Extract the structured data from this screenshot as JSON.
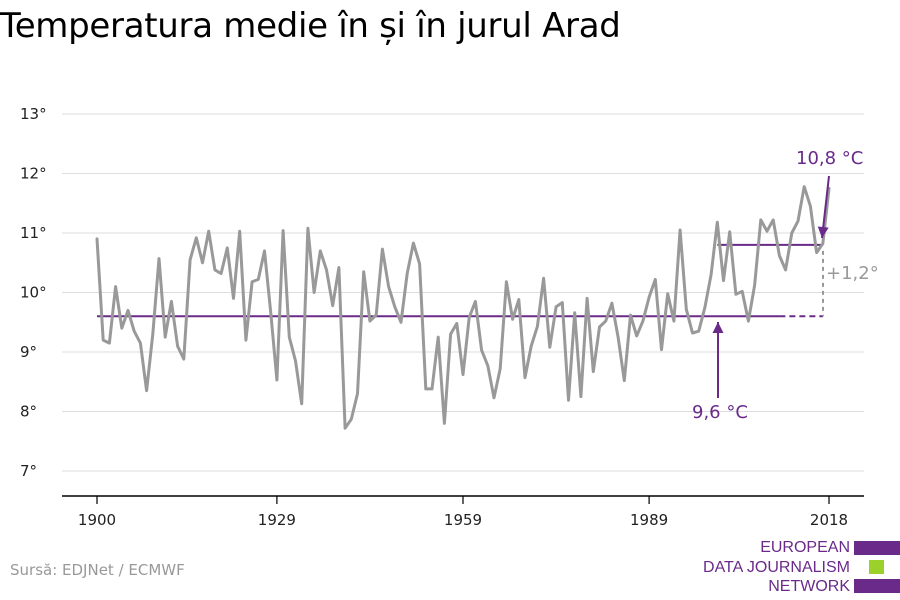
{
  "title": "Temperatura medie în și în jurul Arad",
  "source": "Sursă: EDJNet / ECMWF",
  "logo": {
    "lines": [
      "EUROPEAN",
      "DATA JOURNALISM",
      "NETWORK"
    ],
    "colors": [
      "#6a2a8a",
      "#9bd12a",
      "#6a2a8a"
    ]
  },
  "colors": {
    "series": "#999999",
    "accent": "#6a2a8a",
    "grid": "#dddddd",
    "axis": "#000000"
  },
  "chart_data": {
    "type": "line",
    "title": "Temperatura medie în și în jurul Arad",
    "xlabel": "",
    "ylabel": "",
    "xlim": [
      1900,
      2018
    ],
    "ylim": [
      7,
      13
    ],
    "x_ticks": [
      1900,
      1929,
      1959,
      1989,
      2018
    ],
    "x_tick_labels": [
      "1900",
      "1929",
      "1959",
      "1989",
      "2018"
    ],
    "y_ticks": [
      7,
      8,
      9,
      10,
      11,
      12,
      13
    ],
    "y_tick_labels": [
      "7°",
      "8°",
      "9°",
      "10°",
      "11°",
      "12°",
      "13°"
    ],
    "grid": true,
    "series": [
      {
        "x": [
          1900,
          1901,
          1902,
          1903,
          1904,
          1905,
          1906,
          1907,
          1908,
          1909,
          1910,
          1911,
          1912,
          1913,
          1914,
          1915,
          1916,
          1917,
          1918,
          1919,
          1920,
          1921,
          1922,
          1923,
          1924,
          1925,
          1926,
          1927,
          1928,
          1929,
          1930,
          1931,
          1932,
          1933,
          1934,
          1935,
          1936,
          1937,
          1938,
          1939,
          1940,
          1941,
          1942,
          1943,
          1944,
          1945,
          1946,
          1947,
          1948,
          1949,
          1950,
          1951,
          1952,
          1953,
          1954,
          1955,
          1956,
          1957,
          1958,
          1959,
          1960,
          1961,
          1962,
          1963,
          1964,
          1965,
          1966,
          1967,
          1968,
          1969,
          1970,
          1971,
          1972,
          1973,
          1974,
          1975,
          1976,
          1977,
          1978,
          1979,
          1980,
          1981,
          1982,
          1983,
          1984,
          1985,
          1986,
          1987,
          1988,
          1989,
          1990,
          1991,
          1992,
          1993,
          1994,
          1995,
          1996,
          1997,
          1998,
          1999,
          2000,
          2001,
          2002,
          2003,
          2004,
          2005,
          2006,
          2007,
          2008,
          2009,
          2010,
          2011,
          2012,
          2013,
          2014,
          2015,
          2016,
          2017,
          2018
        ],
        "values": [
          10.9,
          9.2,
          9.15,
          10.1,
          9.4,
          9.7,
          9.35,
          9.15,
          8.35,
          9.3,
          10.57,
          9.25,
          9.85,
          9.1,
          8.88,
          10.55,
          10.92,
          10.5,
          11.03,
          10.38,
          10.32,
          10.75,
          9.9,
          11.03,
          9.2,
          10.18,
          10.22,
          10.7,
          9.67,
          8.53,
          11.04,
          9.25,
          8.85,
          8.13,
          11.08,
          10.0,
          10.7,
          10.38,
          9.78,
          10.42,
          7.72,
          7.87,
          8.3,
          10.35,
          9.52,
          9.62,
          10.73,
          10.1,
          9.76,
          9.5,
          10.32,
          10.83,
          10.48,
          8.38,
          8.38,
          9.25,
          7.8,
          9.3,
          9.48,
          8.62,
          9.58,
          9.85,
          9.03,
          8.77,
          8.23,
          8.72,
          10.18,
          9.55,
          9.88,
          8.57,
          9.1,
          9.43,
          10.24,
          9.08,
          9.76,
          9.83,
          8.19,
          9.66,
          8.25,
          9.9,
          8.67,
          9.42,
          9.52,
          9.82,
          9.25,
          8.52,
          9.62,
          9.27,
          9.52,
          9.92,
          10.22,
          9.04,
          9.98,
          9.52,
          11.05,
          9.72,
          9.32,
          9.35,
          9.75,
          10.3,
          11.18,
          10.2,
          11.02,
          9.97,
          10.02,
          9.52,
          10.12,
          11.22,
          11.03,
          11.22,
          10.62,
          10.38,
          11.0,
          11.2,
          11.78,
          11.45,
          10.67,
          10.82,
          11.75
        ]
      }
    ],
    "annotations": [
      {
        "text": "9,6 °C",
        "value": 9.6,
        "x_from": 1900,
        "x_to": 2010
      },
      {
        "text": "10,8 °C",
        "value": 10.8,
        "x_from": 2000,
        "x_to": 2018
      },
      {
        "text": "+1,2°"
      }
    ]
  }
}
